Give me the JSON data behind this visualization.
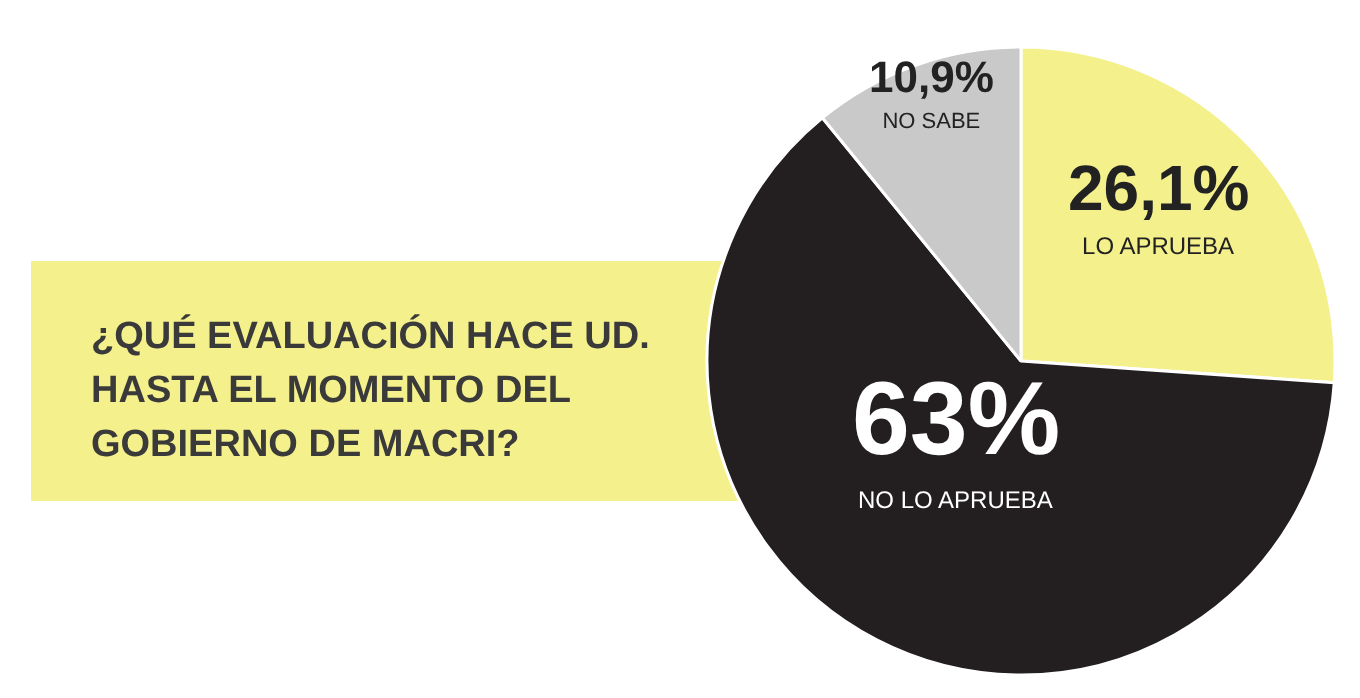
{
  "chart_data": {
    "type": "pie",
    "title": "¿QUÉ EVALUACIÓN HACE UD. HASTA EL MOMENTO DEL GOBIERNO DE MACRI?",
    "categories": [
      "LO APRUEBA",
      "NO LO APRUEBA",
      "NO SABE"
    ],
    "values": [
      26.1,
      63,
      10.9
    ],
    "value_labels": [
      "26,1%",
      "63%",
      "10,9%"
    ],
    "colors": [
      "#f4f08c",
      "#231f20",
      "#c9c9c9"
    ]
  }
}
